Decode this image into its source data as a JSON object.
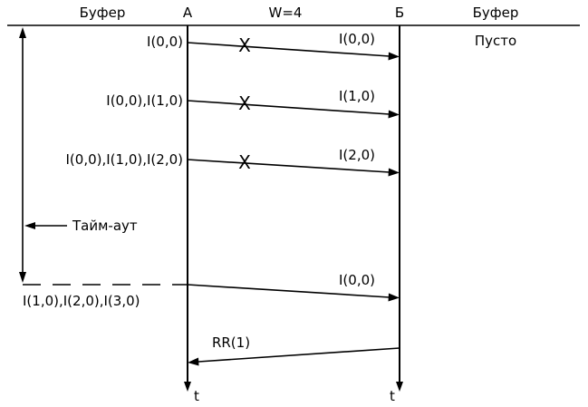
{
  "header": {
    "buffer_left": "Буфер",
    "station_a": "A",
    "window": "W=4",
    "station_b": "Б",
    "buffer_right": "Буфер"
  },
  "receiver_buffer_state": "Пусто",
  "sender_buffers": {
    "frame1": "I(0,0)",
    "frame2": "I(0,0),I(1,0)",
    "frame3": "I(0,0),I(1,0),I(2,0)",
    "after_retransmit": "I(1,0),I(2,0),I(3,0)"
  },
  "frames": {
    "frame1": "I(0,0)",
    "frame2": "I(1,0)",
    "frame3": "I(2,0)",
    "retransmit": "I(0,0)",
    "ack": "RR(1)"
  },
  "timeout_label": "Тайм-аут",
  "time_label_a": "t",
  "time_label_b": "t",
  "lost_marker": "X"
}
